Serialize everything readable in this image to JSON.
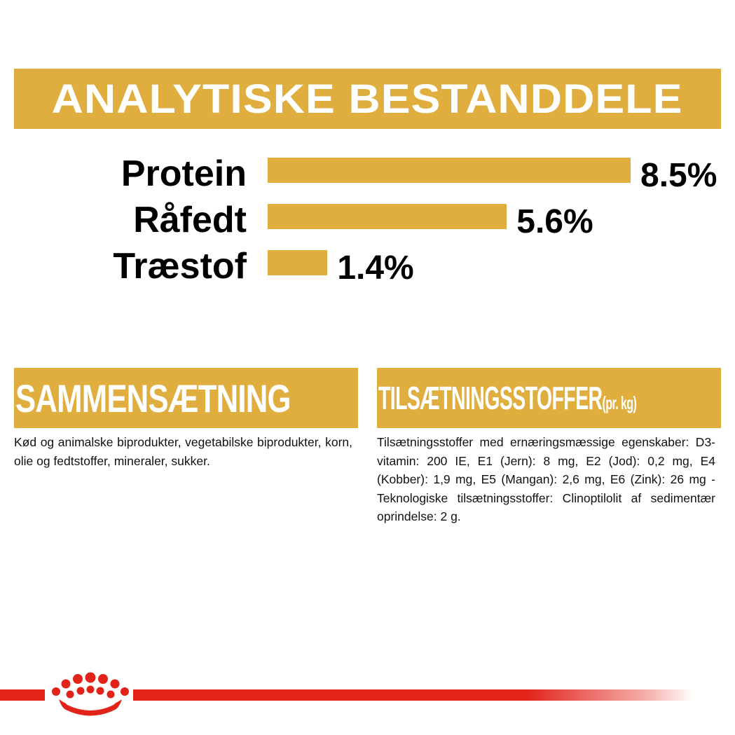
{
  "header": {
    "title": "ANALYTISKE BESTANDDELE"
  },
  "chart_data": {
    "type": "bar",
    "orientation": "horizontal",
    "categories": [
      "Protein",
      "Råfedt",
      "Træstof"
    ],
    "values": [
      8.5,
      5.6,
      1.4
    ],
    "value_labels": [
      "8.5%",
      "5.6%",
      "1.4%"
    ],
    "unit": "%",
    "bar_color": "#E0AE3E"
  },
  "composition": {
    "heading": "SAMMENSÆTNING",
    "text": "Kød og animalske biprodukter, vegetabilske biprodukter, korn, olie og fedtstoffer, mineraler, sukker."
  },
  "additives": {
    "heading": "TILSÆTNINGSSTOFFER",
    "heading_suffix": "(pr. kg)",
    "text": "Tilsætningsstoffer med ernæringsmæssige egenskaber: D3-vitamin: 200 IE, E1 (Jern): 8 mg, E2 (Jod): 0,2 mg, E4 (Kobber): 1,9 mg, E5 (Mangan): 2,6 mg, E6 (Zink): 26 mg - Teknologiske tilsætningsstoffer: Clinoptilolit af sedimentær oprindelse: 2 g."
  },
  "footer": {
    "logo": "royal-canin-crown-icon",
    "accent": "#E2231A"
  }
}
